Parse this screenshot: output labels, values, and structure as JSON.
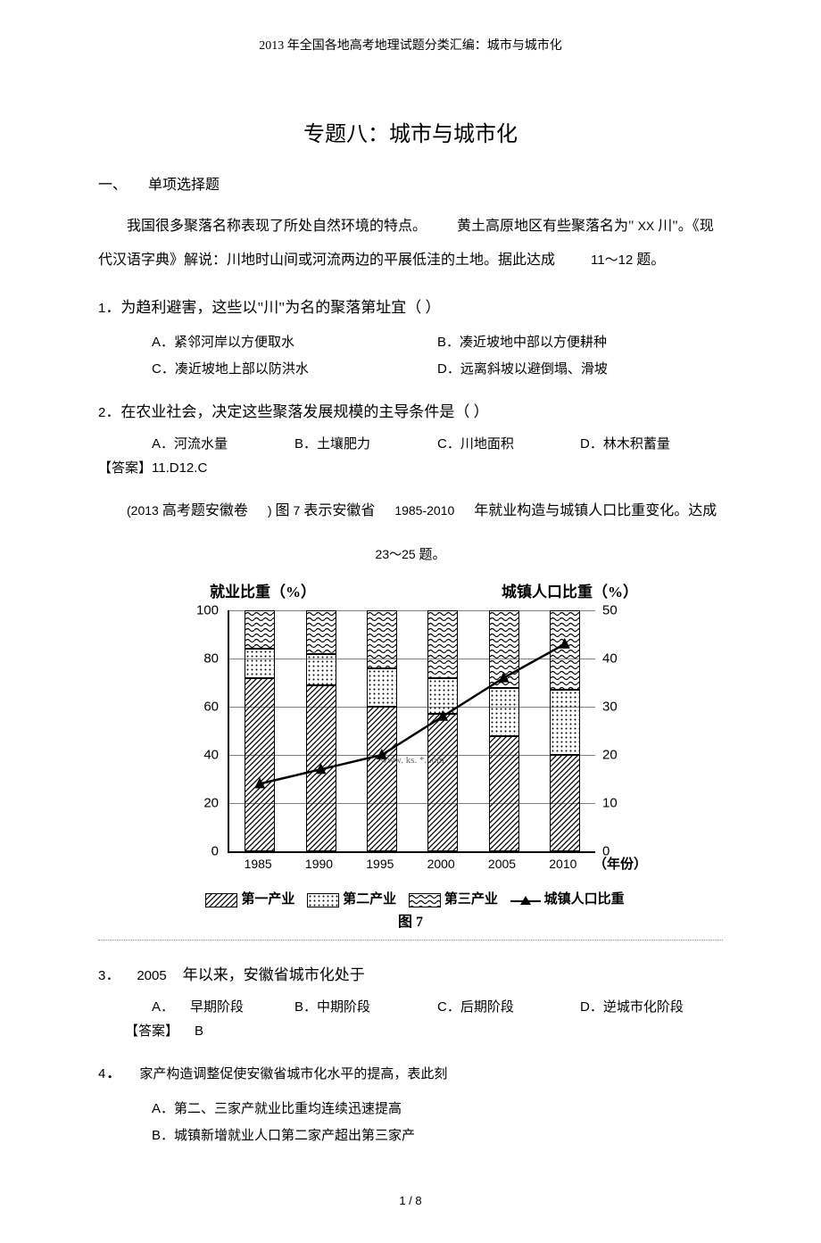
{
  "header": "2013 年全国各地高考地理试题分类汇编：城市与城市化",
  "title": "专题八：城市与城市化",
  "section1": "一、　　单项选择题",
  "intro": {
    "p1a": "我国很多聚落名称表现了所处自然环境的特点。",
    "p1b": "黄土高原地区有些聚落名为\"",
    "p1c": "XX",
    "p1d": "川\"。《现",
    "p2a": "代汉语字典》解说：川地时山间或河流两边的平展低洼的土地。据此达成",
    "p2b": "11～12",
    "p2c": "题。"
  },
  "q1": {
    "num": "1",
    "text": "．为趋利避害，这些以\"川\"为名的聚落第址宜（ ）",
    "A": "紧邻河岸以方便取水",
    "B": "凑近坡地中部以方便耕种",
    "C": "凑近坡地上部以防洪水",
    "D": "远离斜坡以避倒塌、滑坡"
  },
  "q2": {
    "num": "2",
    "text": "．在农业社会，决定这些聚落发展规模的主导条件是（ ）",
    "A": "河流水量",
    "B": "土壤肥力",
    "C": "川地面积",
    "D": "林木积蓄量"
  },
  "ans12": {
    "label": "【答案】",
    "val": "11.D12.C"
  },
  "context2": {
    "a": "(2013",
    "b": "高考题安徽卷",
    "c": ")",
    "d": "图",
    "e": "7",
    "f": "表示安徽省",
    "g": "1985-2010",
    "h": "年就业构造与城镇人口比重变化。达成"
  },
  "context2b": {
    "a": "23～25",
    "b": "题。"
  },
  "chart": {
    "leftTitle": "就业比重（%）",
    "rightTitle": "城镇人口比重（%）",
    "xTitle": "（年份）",
    "yLeft": [
      0,
      20,
      40,
      60,
      80,
      100
    ],
    "yRight": [
      0,
      10,
      20,
      30,
      40,
      50
    ],
    "years": [
      "1985",
      "1990",
      "1995",
      "2000",
      "2005",
      "2010"
    ],
    "primary": [
      72,
      69,
      60,
      57,
      48,
      40
    ],
    "secondary": [
      12,
      13,
      16,
      15,
      20,
      27
    ],
    "tertiary": [
      16,
      18,
      24,
      28,
      32,
      33
    ],
    "urban": [
      14,
      17,
      20,
      28,
      36,
      43
    ],
    "legend": {
      "l1": "第一产业",
      "l2": "第二产业",
      "l3": "第三产业",
      "l4": "城镇人口比重"
    },
    "caption": "图 7",
    "watermark": "www. ks. *. .om",
    "colors": {
      "grid": "#808080",
      "axis": "#000000",
      "line": "#000000"
    }
  },
  "q3": {
    "num": "3",
    "pre": "．",
    "yr": "2005",
    "text": "年以来，安徽省城市化处于",
    "A": "早期阶段",
    "B": "中期阶段",
    "C": "后期阶段",
    "D": "逆城市化阶段"
  },
  "ans3": {
    "label": "【答案】",
    "val": "B"
  },
  "q4": {
    "num": "4",
    "dot": "．",
    "text": "家产构造调整促使安徽省城市化水平的提高，表此刻",
    "A": "第二、三家产就业比重均连续迅速提高",
    "B": "城镇新增就业人口第二家产超出第三家产"
  },
  "optLabels": {
    "A": "A．",
    "B": "B．",
    "C": "C．",
    "D": "D．"
  },
  "footer": "1 / 8"
}
